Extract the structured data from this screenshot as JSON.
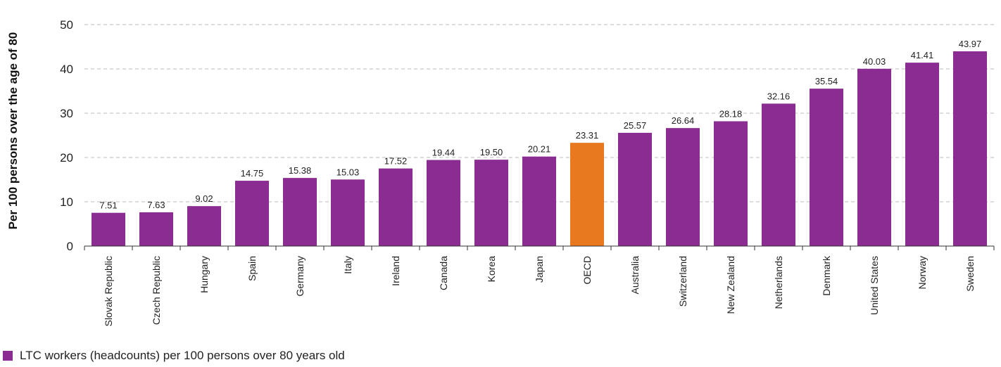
{
  "chart_data": {
    "type": "bar",
    "title": "",
    "xlabel": "",
    "ylabel": "Per 100 persons over the age of 80",
    "ylim": [
      0,
      50
    ],
    "yticks": [
      0,
      10,
      20,
      30,
      40,
      50
    ],
    "grid": true,
    "legend_placement": "bottom-left",
    "categories": [
      "Slovak Republic",
      "Czech Republic",
      "Hungary",
      "Spain",
      "Germany",
      "Italy",
      "Ireland",
      "Canada",
      "Korea",
      "Japan",
      "OECD",
      "Australia",
      "Switzerland",
      "New Zealand",
      "Netherlands",
      "Denmark",
      "United States",
      "Norway",
      "Sweden"
    ],
    "series": [
      {
        "name": "LTC workers (headcounts) per 100 persons over 80 years old",
        "values": [
          7.51,
          7.63,
          9.02,
          14.75,
          15.38,
          15.03,
          17.52,
          19.44,
          19.5,
          20.21,
          23.31,
          25.57,
          26.64,
          28.18,
          32.16,
          35.54,
          40.03,
          41.41,
          43.97
        ],
        "labels": [
          "7.51",
          "7.63",
          "9.02",
          "14.75",
          "15.38",
          "15.03",
          "17.52",
          "19.44",
          "19.50",
          "20.21",
          "23.31",
          "25.57",
          "26.64",
          "28.18",
          "32.16",
          "35.54",
          "40.03",
          "41.41",
          "43.97"
        ]
      }
    ],
    "highlight_category": "OECD",
    "colors": {
      "bar": "#8b2c92",
      "highlight": "#e8791f",
      "grid": "#bbbbbb",
      "axis": "#333333"
    }
  },
  "legend": {
    "label": "LTC workers (headcounts) per 100 persons over 80 years old"
  }
}
